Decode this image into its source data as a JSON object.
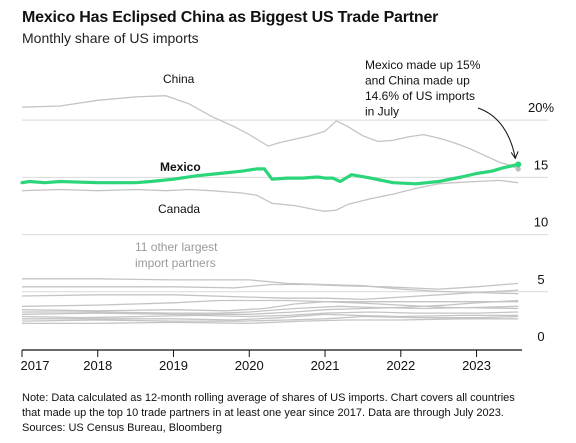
{
  "title": "Mexico Has Eclipsed China as Biggest US Trade Partner",
  "subtitle": "Monthly share of US imports",
  "notes": [
    "Note: Data calculated as 12-month rolling average of shares of US imports. Chart covers all countries",
    "that made up the top 10 trade partners in at least one year since 2017. Data are through July 2023.",
    "Sources: US Census Bureau, Bloomberg"
  ],
  "chart_data": {
    "type": "line",
    "title": "Mexico Has Eclipsed China as Biggest US Trade Partner",
    "subtitle": "Monthly share of US imports",
    "xlabel": "",
    "ylabel": "",
    "xlim": [
      2017.0,
      2023.6
    ],
    "ylim": [
      0,
      21.5
    ],
    "yticks": [
      0,
      5,
      10,
      15,
      20
    ],
    "ytick_labels": [
      "0",
      "5",
      "10",
      "15",
      "20%"
    ],
    "xtick_labels": [
      "2017",
      "2018",
      "2019",
      "2020",
      "2021",
      "2022",
      "2023"
    ],
    "grid": "horizontal",
    "colors": {
      "Mexico": "#2bd57a",
      "others": "#c4c4c4",
      "axis": "#111111"
    },
    "series": [
      {
        "name": "China",
        "label": "China",
        "highlight": false,
        "points": [
          [
            2017.0,
            20.0
          ],
          [
            2017.5,
            20.1
          ],
          [
            2018.0,
            20.6
          ],
          [
            2018.5,
            20.9
          ],
          [
            2018.9,
            21.0
          ],
          [
            2019.2,
            20.3
          ],
          [
            2019.5,
            19.2
          ],
          [
            2019.8,
            18.3
          ],
          [
            2020.0,
            17.6
          ],
          [
            2020.15,
            17.0
          ],
          [
            2020.25,
            16.6
          ],
          [
            2020.4,
            16.9
          ],
          [
            2020.6,
            17.2
          ],
          [
            2020.8,
            17.5
          ],
          [
            2021.0,
            17.9
          ],
          [
            2021.15,
            18.8
          ],
          [
            2021.3,
            18.3
          ],
          [
            2021.5,
            17.5
          ],
          [
            2021.7,
            17.0
          ],
          [
            2021.9,
            17.1
          ],
          [
            2022.1,
            17.4
          ],
          [
            2022.3,
            17.6
          ],
          [
            2022.5,
            17.3
          ],
          [
            2022.7,
            16.9
          ],
          [
            2022.9,
            16.4
          ],
          [
            2023.1,
            15.8
          ],
          [
            2023.3,
            15.2
          ],
          [
            2023.45,
            14.9
          ],
          [
            2023.55,
            14.6
          ]
        ]
      },
      {
        "name": "Mexico",
        "label": "Mexico",
        "highlight": true,
        "points": [
          [
            2017.0,
            13.4
          ],
          [
            2017.1,
            13.5
          ],
          [
            2017.3,
            13.4
          ],
          [
            2017.5,
            13.5
          ],
          [
            2018.0,
            13.4
          ],
          [
            2018.5,
            13.4
          ],
          [
            2018.7,
            13.5
          ],
          [
            2019.0,
            13.7
          ],
          [
            2019.3,
            14.0
          ],
          [
            2019.6,
            14.2
          ],
          [
            2019.9,
            14.4
          ],
          [
            2020.1,
            14.6
          ],
          [
            2020.2,
            14.6
          ],
          [
            2020.3,
            13.7
          ],
          [
            2020.5,
            13.8
          ],
          [
            2020.7,
            13.8
          ],
          [
            2020.9,
            13.9
          ],
          [
            2021.0,
            13.8
          ],
          [
            2021.1,
            13.8
          ],
          [
            2021.2,
            13.5
          ],
          [
            2021.35,
            14.1
          ],
          [
            2021.6,
            13.8
          ],
          [
            2021.9,
            13.4
          ],
          [
            2022.2,
            13.3
          ],
          [
            2022.5,
            13.5
          ],
          [
            2022.8,
            13.9
          ],
          [
            2023.0,
            14.2
          ],
          [
            2023.2,
            14.4
          ],
          [
            2023.35,
            14.7
          ],
          [
            2023.55,
            15.0
          ]
        ]
      },
      {
        "name": "Canada",
        "label": "Canada",
        "highlight": false,
        "points": [
          [
            2017.0,
            12.7
          ],
          [
            2017.5,
            12.8
          ],
          [
            2018.0,
            12.7
          ],
          [
            2018.5,
            12.8
          ],
          [
            2018.9,
            12.7
          ],
          [
            2019.2,
            12.8
          ],
          [
            2019.5,
            12.7
          ],
          [
            2019.9,
            12.5
          ],
          [
            2020.1,
            12.3
          ],
          [
            2020.3,
            11.6
          ],
          [
            2020.6,
            11.4
          ],
          [
            2020.9,
            11.0
          ],
          [
            2021.0,
            10.9
          ],
          [
            2021.15,
            11.0
          ],
          [
            2021.3,
            11.5
          ],
          [
            2021.6,
            12.0
          ],
          [
            2021.9,
            12.4
          ],
          [
            2022.2,
            12.9
          ],
          [
            2022.5,
            13.3
          ],
          [
            2022.7,
            13.4
          ],
          [
            2023.0,
            13.5
          ],
          [
            2023.3,
            13.6
          ],
          [
            2023.55,
            13.4
          ]
        ]
      },
      {
        "name": "",
        "label": "",
        "highlight": false,
        "points": [
          [
            2017.0,
            5.0
          ],
          [
            2018.0,
            5.0
          ],
          [
            2019.0,
            4.9
          ],
          [
            2020.0,
            4.9
          ],
          [
            2020.5,
            4.6
          ],
          [
            2021.0,
            4.5
          ],
          [
            2021.5,
            4.4
          ],
          [
            2022.0,
            4.1
          ],
          [
            2022.5,
            3.9
          ],
          [
            2023.0,
            3.8
          ],
          [
            2023.55,
            3.7
          ]
        ]
      },
      {
        "name": "",
        "label": "",
        "highlight": false,
        "points": [
          [
            2017.0,
            4.3
          ],
          [
            2018.0,
            4.3
          ],
          [
            2019.0,
            4.3
          ],
          [
            2019.8,
            4.2
          ],
          [
            2020.3,
            4.5
          ],
          [
            2020.8,
            4.5
          ],
          [
            2021.2,
            4.4
          ],
          [
            2021.8,
            4.3
          ],
          [
            2022.5,
            4.1
          ],
          [
            2023.0,
            4.3
          ],
          [
            2023.55,
            4.6
          ]
        ]
      },
      {
        "name": "",
        "label": "",
        "highlight": false,
        "points": [
          [
            2017.0,
            3.5
          ],
          [
            2018.0,
            3.6
          ],
          [
            2019.0,
            3.6
          ],
          [
            2020.0,
            3.4
          ],
          [
            2020.5,
            3.3
          ],
          [
            2021.0,
            3.3
          ],
          [
            2021.5,
            3.2
          ],
          [
            2022.0,
            3.4
          ],
          [
            2022.5,
            3.6
          ],
          [
            2023.0,
            3.8
          ],
          [
            2023.55,
            4.0
          ]
        ]
      },
      {
        "name": "",
        "label": "",
        "highlight": false,
        "points": [
          [
            2017.0,
            2.6
          ],
          [
            2018.0,
            2.7
          ],
          [
            2019.0,
            2.9
          ],
          [
            2019.6,
            3.1
          ],
          [
            2020.0,
            3.1
          ],
          [
            2020.5,
            3.1
          ],
          [
            2021.0,
            3.0
          ],
          [
            2021.6,
            3.0
          ],
          [
            2022.2,
            3.0
          ],
          [
            2023.0,
            3.0
          ],
          [
            2023.55,
            3.0
          ]
        ]
      },
      {
        "name": "",
        "label": "",
        "highlight": false,
        "points": [
          [
            2017.0,
            2.3
          ],
          [
            2018.0,
            2.2
          ],
          [
            2019.0,
            2.3
          ],
          [
            2019.7,
            2.2
          ],
          [
            2020.2,
            2.4
          ],
          [
            2020.6,
            2.8
          ],
          [
            2021.0,
            3.0
          ],
          [
            2021.4,
            2.9
          ],
          [
            2022.0,
            2.7
          ],
          [
            2022.6,
            2.5
          ],
          [
            2023.55,
            2.4
          ]
        ]
      },
      {
        "name": "",
        "label": "",
        "highlight": false,
        "points": [
          [
            2017.0,
            2.1
          ],
          [
            2018.0,
            2.1
          ],
          [
            2019.0,
            2.0
          ],
          [
            2019.6,
            2.0
          ],
          [
            2020.0,
            2.1
          ],
          [
            2020.6,
            2.4
          ],
          [
            2021.2,
            2.6
          ],
          [
            2021.6,
            2.5
          ],
          [
            2022.3,
            2.4
          ],
          [
            2023.0,
            2.5
          ],
          [
            2023.55,
            2.6
          ]
        ]
      },
      {
        "name": "",
        "label": "",
        "highlight": false,
        "points": [
          [
            2017.0,
            1.9
          ],
          [
            2018.0,
            2.0
          ],
          [
            2019.0,
            1.9
          ],
          [
            2020.0,
            1.9
          ],
          [
            2020.6,
            2.1
          ],
          [
            2021.0,
            2.3
          ],
          [
            2021.5,
            2.4
          ],
          [
            2022.0,
            2.5
          ],
          [
            2022.6,
            2.7
          ],
          [
            2023.0,
            2.9
          ],
          [
            2023.55,
            3.1
          ]
        ]
      },
      {
        "name": "",
        "label": "",
        "highlight": false,
        "points": [
          [
            2017.0,
            1.7
          ],
          [
            2017.8,
            1.6
          ],
          [
            2018.6,
            1.7
          ],
          [
            2019.3,
            1.8
          ],
          [
            2020.0,
            1.7
          ],
          [
            2020.5,
            1.8
          ],
          [
            2021.0,
            2.0
          ],
          [
            2021.6,
            2.1
          ],
          [
            2022.2,
            2.0
          ],
          [
            2023.0,
            2.0
          ],
          [
            2023.55,
            2.1
          ]
        ]
      },
      {
        "name": "",
        "label": "",
        "highlight": false,
        "points": [
          [
            2017.0,
            1.5
          ],
          [
            2018.0,
            1.5
          ],
          [
            2019.0,
            1.5
          ],
          [
            2019.8,
            1.4
          ],
          [
            2020.4,
            1.6
          ],
          [
            2021.0,
            1.9
          ],
          [
            2021.4,
            1.8
          ],
          [
            2022.0,
            1.7
          ],
          [
            2022.8,
            1.8
          ],
          [
            2023.55,
            1.8
          ]
        ]
      },
      {
        "name": "",
        "label": "",
        "highlight": false,
        "points": [
          [
            2017.0,
            1.3
          ],
          [
            2018.0,
            1.4
          ],
          [
            2019.0,
            1.3
          ],
          [
            2019.9,
            1.3
          ],
          [
            2020.5,
            1.4
          ],
          [
            2021.0,
            1.5
          ],
          [
            2021.5,
            1.7
          ],
          [
            2022.2,
            1.6
          ],
          [
            2023.0,
            1.6
          ],
          [
            2023.55,
            1.7
          ]
        ]
      },
      {
        "name": "",
        "label": "",
        "highlight": false,
        "points": [
          [
            2017.0,
            1.1
          ],
          [
            2018.0,
            1.1
          ],
          [
            2019.0,
            1.2
          ],
          [
            2020.0,
            1.1
          ],
          [
            2020.7,
            1.3
          ],
          [
            2021.3,
            1.4
          ],
          [
            2022.0,
            1.4
          ],
          [
            2022.8,
            1.5
          ],
          [
            2023.55,
            1.5
          ]
        ]
      }
    ],
    "group_label": [
      "11 other largest",
      "import partners"
    ],
    "annotation": {
      "lines": [
        "Mexico made up 15%",
        "and China made up",
        "14.6% of US imports",
        "in July"
      ]
    }
  }
}
